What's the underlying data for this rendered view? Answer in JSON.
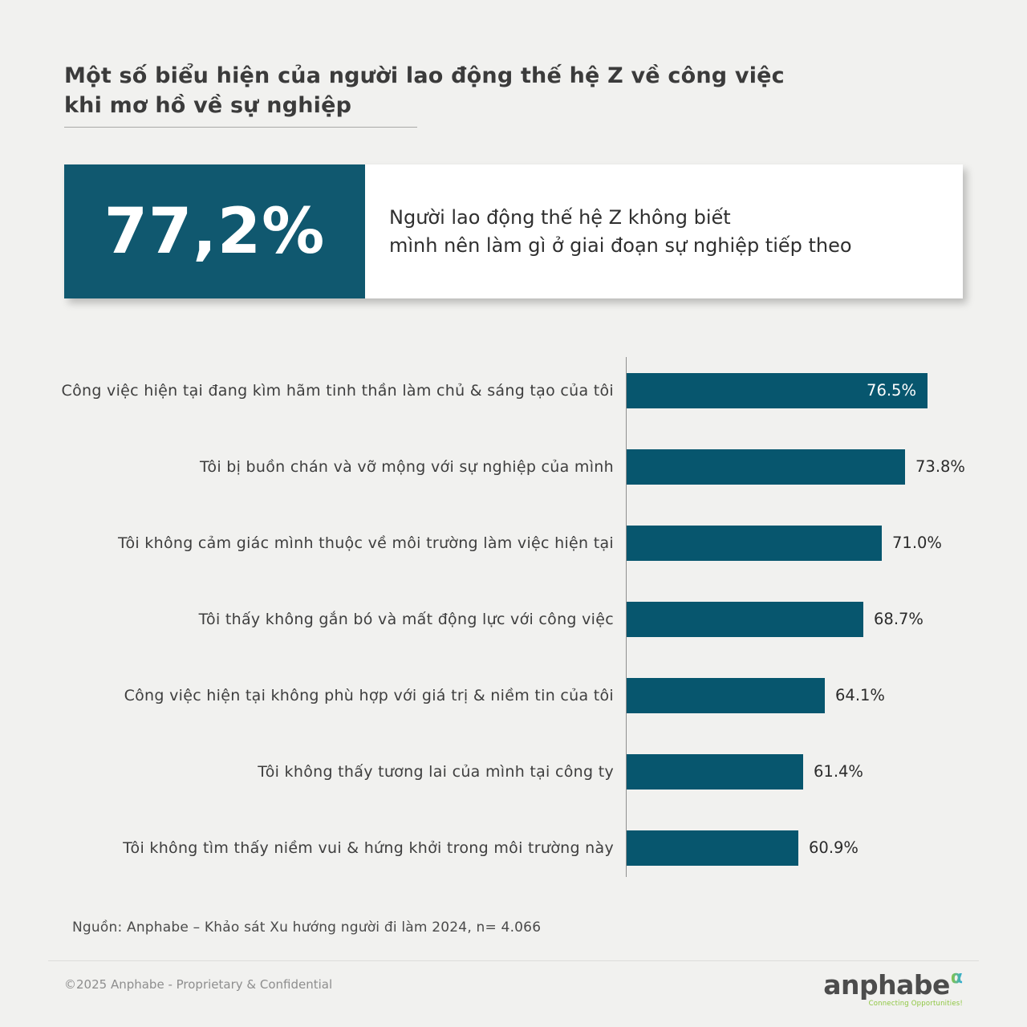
{
  "page": {
    "title_line1": "Một số biểu hiện của người lao động thế hệ Z về công việc",
    "title_line2": "khi mơ hồ về sự nghiệp"
  },
  "highlight": {
    "value": "77,2%",
    "description_line1": "Người lao động thế hệ Z không biết",
    "description_line2": "mình nên làm gì ở giai đoạn sự nghiệp tiếp theo"
  },
  "chart_data": {
    "type": "bar",
    "orientation": "horizontal",
    "title": "",
    "xlabel": "",
    "ylabel": "",
    "grid": false,
    "legend": "none",
    "xlim": [
      40,
      78
    ],
    "categories": [
      "Công việc hiện tại đang kìm hãm tinh thần làm chủ & sáng tạo của tôi",
      "Tôi bị buồn chán và vỡ mộng với sự nghiệp của mình",
      "Tôi không cảm giác mình thuộc về môi trường làm việc hiện tại",
      "Tôi thấy không gắn bó và mất động lực với công việc",
      "Công việc hiện tại không phù hợp với giá trị & niềm tin của tôi",
      "Tôi không thấy tương lai của mình tại công ty",
      "Tôi không tìm thấy niềm vui & hứng khởi trong môi trường này"
    ],
    "values": [
      76.5,
      73.8,
      71.0,
      68.7,
      64.1,
      61.4,
      60.9
    ],
    "value_labels": [
      "76.5%",
      "73.8%",
      "71.0%",
      "68.7%",
      "64.1%",
      "61.4%",
      "60.9%"
    ],
    "label_placement": [
      "inside",
      "outside",
      "outside",
      "outside",
      "outside",
      "outside",
      "outside"
    ],
    "bar_color": "#07566e"
  },
  "source": "Nguồn: Anphabe – Khảo sát Xu hướng người đi làm 2024, n= 4.066",
  "footer": {
    "copyright": "©2025 Anphabe - Proprietary & Confidential",
    "logo_text": "anphabe",
    "logo_alpha": "α",
    "logo_tagline": "Connecting Opportunities!"
  },
  "colors": {
    "background": "#f1f1ef",
    "accent_teal": "#07566e",
    "stat_box_teal": "#10586f",
    "title_text": "#3b3b3b",
    "logo_green": "#8dc63f",
    "logo_blue": "#29aae1"
  }
}
